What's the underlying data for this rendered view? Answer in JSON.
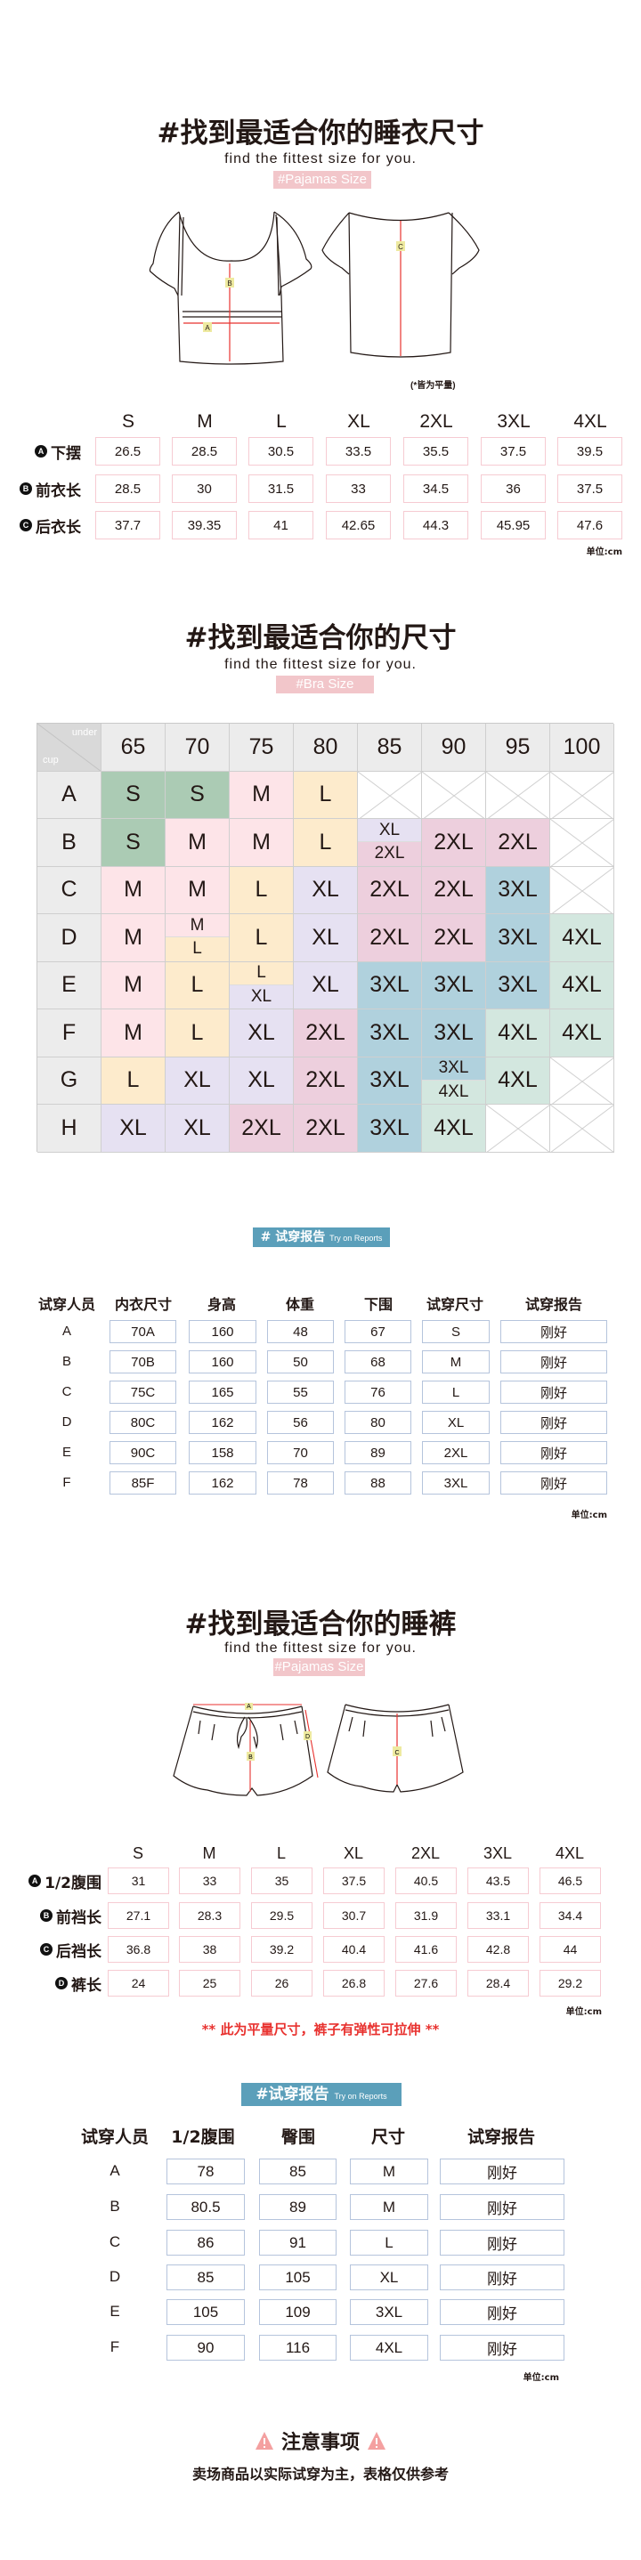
{
  "colors": {
    "pink_badge": "#f2c6ca",
    "blue_badge": "#5b9fba",
    "note_red": "#e8322f",
    "warning": "#f4a0a0"
  },
  "pajama_top": {
    "title": "#找到最适合你的睡衣尺寸",
    "subtitle": "find the fittest size for you.",
    "badge": "#Pajamas Size",
    "diagram_labels": {
      "a": "A",
      "b": "B",
      "c": "C"
    },
    "note": "(*皆为平量)",
    "sizes": [
      "S",
      "M",
      "L",
      "XL",
      "2XL",
      "3XL",
      "4XL"
    ],
    "rows": [
      {
        "marker": "A",
        "label": "下摆",
        "values": [
          "26.5",
          "28.5",
          "30.5",
          "33.5",
          "35.5",
          "37.5",
          "39.5"
        ]
      },
      {
        "marker": "B",
        "label": "前衣长",
        "values": [
          "28.5",
          "30",
          "31.5",
          "33",
          "34.5",
          "36",
          "37.5"
        ]
      },
      {
        "marker": "C",
        "label": "后衣长",
        "values": [
          "37.7",
          "39.35",
          "41",
          "42.65",
          "44.3",
          "45.95",
          "47.6"
        ]
      }
    ],
    "unit": "单位:cm"
  },
  "bra": {
    "title": "#找到最适合你的尺寸",
    "subtitle": "find the fittest size for you.",
    "badge": "#Bra Size",
    "corner_top": "under",
    "corner_bottom": "cup",
    "size_colors": {
      "S": "#abcbb4",
      "M": "#fde4e8",
      "L": "#fdebcc",
      "XL": "#e6e1f2",
      "2XL": "#edcfdd",
      "3XL": "#b0d1dd",
      "4XL": "#d3e7df"
    },
    "underbust": [
      "65",
      "70",
      "75",
      "80",
      "85",
      "90",
      "95",
      "100"
    ],
    "rows": [
      {
        "cup": "A",
        "cells": [
          "S",
          "S",
          "M",
          "L",
          null,
          null,
          null,
          null
        ]
      },
      {
        "cup": "B",
        "cells": [
          "S",
          "M",
          "M",
          "L",
          [
            "XL",
            "2XL"
          ],
          "2XL",
          "2XL",
          null
        ]
      },
      {
        "cup": "C",
        "cells": [
          "M",
          "M",
          "L",
          "XL",
          "2XL",
          "2XL",
          "3XL",
          null
        ]
      },
      {
        "cup": "D",
        "cells": [
          "M",
          [
            "M",
            "L"
          ],
          "L",
          "XL",
          "2XL",
          "2XL",
          "3XL",
          "4XL"
        ]
      },
      {
        "cup": "E",
        "cells": [
          "M",
          "L",
          [
            "L",
            "XL"
          ],
          "XL",
          "3XL",
          "3XL",
          "3XL",
          "4XL"
        ]
      },
      {
        "cup": "F",
        "cells": [
          "M",
          "L",
          "XL",
          "2XL",
          "3XL",
          "3XL",
          "4XL",
          "4XL"
        ]
      },
      {
        "cup": "G",
        "cells": [
          "L",
          "XL",
          "XL",
          "2XL",
          "3XL",
          [
            "3XL",
            "4XL"
          ],
          "4XL",
          null
        ]
      },
      {
        "cup": "H",
        "cells": [
          "XL",
          "XL",
          "2XL",
          "2XL",
          "3XL",
          "4XL",
          null,
          null
        ]
      }
    ]
  },
  "report_bra": {
    "badge": "# 试穿报告",
    "badge_en": "Try on Reports",
    "headers": [
      "试穿人员",
      "内衣尺寸",
      "身高",
      "体重",
      "下围",
      "试穿尺寸",
      "试穿报告"
    ],
    "rows": [
      [
        "A",
        "70A",
        "160",
        "48",
        "67",
        "S",
        "刚好"
      ],
      [
        "B",
        "70B",
        "160",
        "50",
        "68",
        "M",
        "刚好"
      ],
      [
        "C",
        "75C",
        "165",
        "55",
        "76",
        "L",
        "刚好"
      ],
      [
        "D",
        "80C",
        "162",
        "56",
        "80",
        "XL",
        "刚好"
      ],
      [
        "E",
        "90C",
        "158",
        "70",
        "89",
        "2XL",
        "刚好"
      ],
      [
        "F",
        "85F",
        "162",
        "78",
        "88",
        "3XL",
        "刚好"
      ]
    ],
    "unit": "单位:cm"
  },
  "pajama_pants": {
    "title": "#找到最适合你的睡裤",
    "subtitle": "find the fittest size for you.",
    "badge": "#Pajamas Size",
    "diagram_labels": {
      "a": "A",
      "b": "B",
      "c": "C",
      "d": "D"
    },
    "sizes": [
      "S",
      "M",
      "L",
      "XL",
      "2XL",
      "3XL",
      "4XL"
    ],
    "rows": [
      {
        "marker": "A",
        "label": "1/2腹围",
        "values": [
          "31",
          "33",
          "35",
          "37.5",
          "40.5",
          "43.5",
          "46.5"
        ]
      },
      {
        "marker": "B",
        "label": "前裆长",
        "values": [
          "27.1",
          "28.3",
          "29.5",
          "30.7",
          "31.9",
          "33.1",
          "34.4"
        ]
      },
      {
        "marker": "C",
        "label": "后裆长",
        "values": [
          "36.8",
          "38",
          "39.2",
          "40.4",
          "41.6",
          "42.8",
          "44"
        ]
      },
      {
        "marker": "D",
        "label": "裤长",
        "values": [
          "24",
          "25",
          "26",
          "26.8",
          "27.6",
          "28.4",
          "29.2"
        ]
      }
    ],
    "unit": "单位:cm",
    "note": "** 此为平量尺寸，裤子有弹性可拉伸 **"
  },
  "report_pants": {
    "badge": "#试穿报告",
    "badge_en": "Try on Reports",
    "headers": [
      "试穿人员",
      "1/2腹围",
      "臀围",
      "尺寸",
      "试穿报告"
    ],
    "rows": [
      [
        "A",
        "78",
        "85",
        "M",
        "刚好"
      ],
      [
        "B",
        "80.5",
        "89",
        "M",
        "刚好"
      ],
      [
        "C",
        "86",
        "91",
        "L",
        "刚好"
      ],
      [
        "D",
        "85",
        "105",
        "XL",
        "刚好"
      ],
      [
        "E",
        "105",
        "109",
        "3XL",
        "刚好"
      ],
      [
        "F",
        "90",
        "116",
        "4XL",
        "刚好"
      ]
    ],
    "unit": "单位:cm"
  },
  "notice": {
    "title": "注意事项",
    "icon": "warning-triangle",
    "text": "卖场商品以实际试穿为主，表格仅供参考"
  }
}
